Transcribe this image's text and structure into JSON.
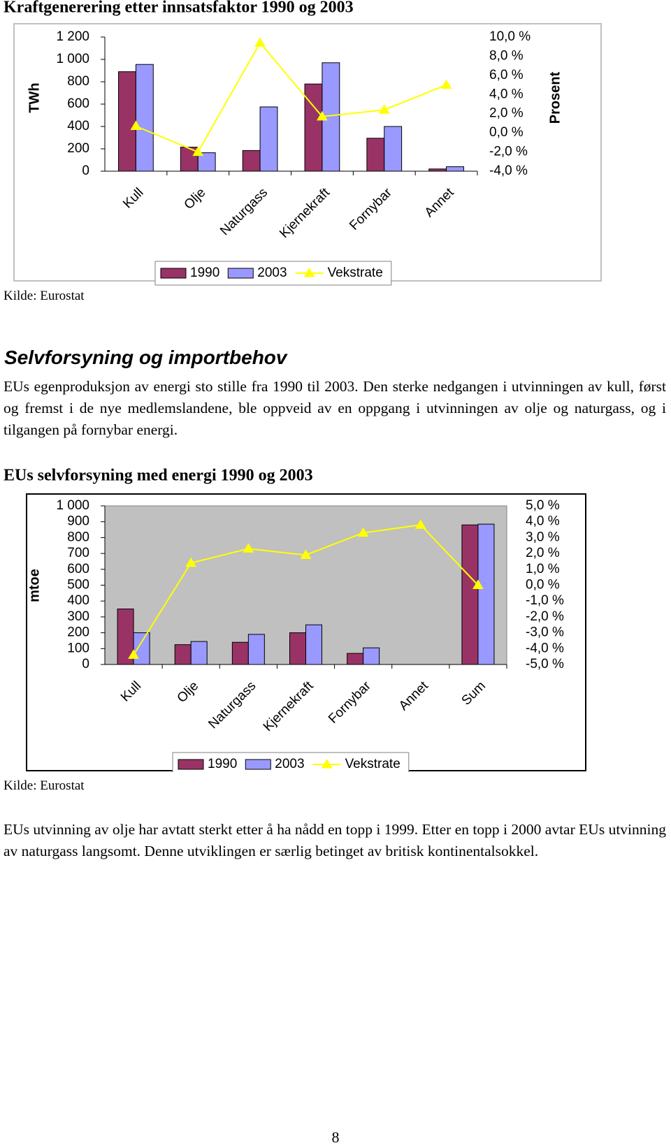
{
  "chart_data": [
    {
      "type": "bar",
      "title": "Kraftgenerering etter innsatsfaktor 1990 og 2003",
      "y_label": "TWh",
      "y2_label": "Prosent",
      "categories": [
        "Kull",
        "Olje",
        "Naturgass",
        "Kjernekraft",
        "Fornybar",
        "Annet"
      ],
      "series": [
        {
          "name": "1990",
          "color": "#993366",
          "values": [
            890,
            215,
            185,
            780,
            295,
            20
          ]
        },
        {
          "name": "2003",
          "color": "#9999ff",
          "values": [
            955,
            165,
            575,
            970,
            400,
            40
          ]
        },
        {
          "name": "Vekstrate",
          "type": "line",
          "axis": "y2",
          "color": "#ffff00",
          "values": [
            0.7,
            -2.0,
            9.4,
            1.7,
            2.4,
            5.0
          ]
        }
      ],
      "ylim": [
        0,
        1200
      ],
      "yticks": [
        0,
        200,
        400,
        600,
        800,
        {
          "value": 1000,
          "label": "1 000"
        },
        {
          "value": 1200,
          "label": "1 200"
        }
      ],
      "y2lim": [
        -4,
        10
      ],
      "y2ticks": [
        {
          "value": -4,
          "label": "-4,0 %"
        },
        {
          "value": -2,
          "label": "-2,0 %"
        },
        {
          "value": 0,
          "label": "0,0 %"
        },
        {
          "value": 2,
          "label": "2,0 %"
        },
        {
          "value": 4,
          "label": "4,0 %"
        },
        {
          "value": 6,
          "label": "6,0 %"
        },
        {
          "value": 8,
          "label": "8,0 %"
        },
        {
          "value": 10,
          "label": "10,0 %"
        }
      ],
      "plot_background": "#ffffff",
      "legend": "bottom"
    },
    {
      "type": "bar",
      "title": "EUs selvforsyning med energi 1990 og 2003",
      "y_label": "mtoe",
      "categories": [
        "Kull",
        "Olje",
        "Naturgass",
        "Kjernekraft",
        "Fornybar",
        "Annet",
        "Sum"
      ],
      "series": [
        {
          "name": "1990",
          "color": "#993366",
          "values": [
            350,
            125,
            140,
            200,
            70,
            0,
            880
          ]
        },
        {
          "name": "2003",
          "color": "#9999ff",
          "values": [
            200,
            145,
            190,
            250,
            105,
            0,
            885
          ]
        },
        {
          "name": "Vekstrate",
          "type": "line",
          "axis": "y2",
          "color": "#ffff00",
          "values": [
            -4.4,
            1.4,
            2.3,
            1.9,
            3.3,
            3.8,
            0.0
          ]
        }
      ],
      "ylim": [
        0,
        1000
      ],
      "yticks": [
        0,
        100,
        200,
        300,
        400,
        500,
        600,
        700,
        800,
        900,
        {
          "value": 1000,
          "label": "1 000"
        }
      ],
      "y2lim": [
        -5,
        5
      ],
      "y2ticks": [
        {
          "value": -5,
          "label": "-5,0 %"
        },
        {
          "value": -4,
          "label": "-4,0 %"
        },
        {
          "value": -3,
          "label": "-3,0 %"
        },
        {
          "value": -2,
          "label": "-2,0 %"
        },
        {
          "value": -1,
          "label": "-1,0 %"
        },
        {
          "value": 0,
          "label": "0,0 %"
        },
        {
          "value": 1,
          "label": "1,0 %"
        },
        {
          "value": 2,
          "label": "2,0 %"
        },
        {
          "value": 3,
          "label": "3,0 %"
        },
        {
          "value": 4,
          "label": "4,0 %"
        },
        {
          "value": 5,
          "label": "5,0 %"
        }
      ],
      "plot_background": "#c0c0c0",
      "legend": "bottom"
    }
  ],
  "sources": [
    "Kilde: Eurostat",
    "Kilde: Eurostat"
  ],
  "heading": "Selvforsyning og importbehov",
  "paragraphs": [
    "EUs egenproduksjon av energi sto stille fra 1990 til 2003. Den sterke nedgangen i utvinningen av kull, først og fremst i de nye medlemslandene, ble oppveid av en oppgang i utvinningen av olje og naturgass, og i tilgangen på fornybar energi.",
    "EUs utvinning av olje har avtatt sterkt etter å ha nådd en topp i 1999. Etter en topp i 2000 avtar EUs utvinning av naturgass langsomt. Denne utviklingen er særlig betinget av britisk kontinentalsokkel."
  ],
  "page_number": "8"
}
